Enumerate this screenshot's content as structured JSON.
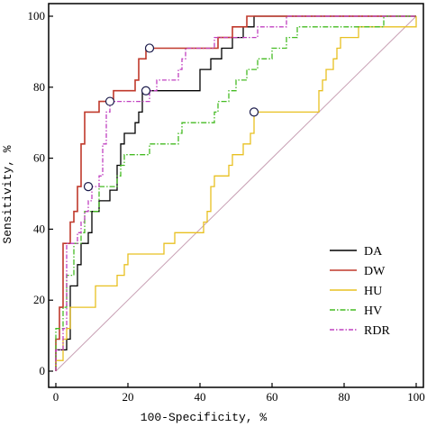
{
  "chart_data": {
    "type": "line",
    "title": "",
    "xlabel": "100-Specificity, %",
    "ylabel": "Sensitivity, %",
    "xlim": [
      0,
      100
    ],
    "ylim": [
      0,
      100
    ],
    "xticks": [
      "0",
      "20",
      "40",
      "60",
      "80",
      "100"
    ],
    "yticks": [
      "0",
      "20",
      "40",
      "60",
      "80",
      "100"
    ],
    "grid": false,
    "legend_position": "bottom-right",
    "reference_line": {
      "from": [
        0,
        0
      ],
      "to": [
        100,
        100
      ],
      "color": "#c8a0b4"
    },
    "series": [
      {
        "name": "DA",
        "color": "#000000",
        "dash": "",
        "points": [
          [
            0,
            0
          ],
          [
            0,
            6
          ],
          [
            3,
            6
          ],
          [
            3,
            9
          ],
          [
            4,
            9
          ],
          [
            4,
            24
          ],
          [
            6,
            24
          ],
          [
            6,
            30
          ],
          [
            7,
            30
          ],
          [
            7,
            36
          ],
          [
            9,
            36
          ],
          [
            9,
            39
          ],
          [
            10,
            39
          ],
          [
            10,
            45
          ],
          [
            12,
            45
          ],
          [
            12,
            48
          ],
          [
            15,
            48
          ],
          [
            15,
            51
          ],
          [
            17,
            51
          ],
          [
            17,
            58
          ],
          [
            18,
            58
          ],
          [
            18,
            64
          ],
          [
            19,
            64
          ],
          [
            19,
            67
          ],
          [
            22,
            67
          ],
          [
            22,
            70
          ],
          [
            23,
            70
          ],
          [
            23,
            73
          ],
          [
            24,
            73
          ],
          [
            24,
            79
          ],
          [
            40,
            79
          ],
          [
            40,
            85
          ],
          [
            43,
            85
          ],
          [
            43,
            88
          ],
          [
            46,
            88
          ],
          [
            46,
            91
          ],
          [
            49,
            91
          ],
          [
            49,
            94
          ],
          [
            52,
            94
          ],
          [
            52,
            97
          ],
          [
            55,
            97
          ],
          [
            55,
            100
          ],
          [
            100,
            100
          ]
        ],
        "marker": [
          25,
          79
        ]
      },
      {
        "name": "DW",
        "color": "#c0392b",
        "dash": "",
        "points": [
          [
            0,
            0
          ],
          [
            0,
            9
          ],
          [
            1,
            9
          ],
          [
            1,
            18
          ],
          [
            2,
            18
          ],
          [
            2,
            36
          ],
          [
            4,
            36
          ],
          [
            4,
            42
          ],
          [
            5,
            42
          ],
          [
            5,
            45
          ],
          [
            6,
            45
          ],
          [
            6,
            52
          ],
          [
            7,
            52
          ],
          [
            7,
            64
          ],
          [
            8,
            64
          ],
          [
            8,
            73
          ],
          [
            12,
            73
          ],
          [
            12,
            76
          ],
          [
            16,
            76
          ],
          [
            16,
            79
          ],
          [
            22,
            79
          ],
          [
            22,
            82
          ],
          [
            23,
            82
          ],
          [
            23,
            88
          ],
          [
            25,
            88
          ],
          [
            25,
            91
          ],
          [
            45,
            91
          ],
          [
            45,
            94
          ],
          [
            49,
            94
          ],
          [
            49,
            97
          ],
          [
            53,
            97
          ],
          [
            53,
            100
          ],
          [
            100,
            100
          ]
        ],
        "marker": [
          26,
          91
        ]
      },
      {
        "name": "HU",
        "color": "#e8c020",
        "dash": "",
        "points": [
          [
            0,
            0
          ],
          [
            0,
            3
          ],
          [
            2,
            3
          ],
          [
            2,
            9
          ],
          [
            3,
            9
          ],
          [
            3,
            12
          ],
          [
            4,
            12
          ],
          [
            4,
            18
          ],
          [
            11,
            18
          ],
          [
            11,
            24
          ],
          [
            17,
            24
          ],
          [
            17,
            27
          ],
          [
            19,
            27
          ],
          [
            19,
            30
          ],
          [
            20,
            30
          ],
          [
            20,
            33
          ],
          [
            30,
            33
          ],
          [
            30,
            36
          ],
          [
            33,
            36
          ],
          [
            33,
            39
          ],
          [
            41,
            39
          ],
          [
            41,
            42
          ],
          [
            42,
            42
          ],
          [
            42,
            45
          ],
          [
            43,
            45
          ],
          [
            43,
            52
          ],
          [
            44,
            52
          ],
          [
            44,
            55
          ],
          [
            48,
            55
          ],
          [
            48,
            58
          ],
          [
            49,
            58
          ],
          [
            49,
            61
          ],
          [
            52,
            61
          ],
          [
            52,
            64
          ],
          [
            54,
            64
          ],
          [
            54,
            67
          ],
          [
            55,
            67
          ],
          [
            55,
            73
          ],
          [
            73,
            73
          ],
          [
            73,
            79
          ],
          [
            74,
            79
          ],
          [
            74,
            82
          ],
          [
            75,
            82
          ],
          [
            75,
            85
          ],
          [
            77,
            85
          ],
          [
            77,
            88
          ],
          [
            78,
            88
          ],
          [
            78,
            91
          ],
          [
            79,
            91
          ],
          [
            79,
            94
          ],
          [
            84,
            94
          ],
          [
            84,
            97
          ],
          [
            100,
            97
          ],
          [
            100,
            100
          ]
        ],
        "marker": [
          55,
          73
        ]
      },
      {
        "name": "HV",
        "color": "#44bb22",
        "dash": "6,2,1.5,2",
        "points": [
          [
            0,
            0
          ],
          [
            0,
            12
          ],
          [
            2,
            12
          ],
          [
            2,
            18
          ],
          [
            3,
            18
          ],
          [
            3,
            27
          ],
          [
            5,
            27
          ],
          [
            5,
            36
          ],
          [
            7,
            36
          ],
          [
            7,
            39
          ],
          [
            8,
            39
          ],
          [
            8,
            45
          ],
          [
            12,
            45
          ],
          [
            12,
            52
          ],
          [
            17,
            52
          ],
          [
            17,
            55
          ],
          [
            18,
            55
          ],
          [
            18,
            58
          ],
          [
            19,
            58
          ],
          [
            19,
            61
          ],
          [
            26,
            61
          ],
          [
            26,
            64
          ],
          [
            34,
            64
          ],
          [
            34,
            67
          ],
          [
            35,
            67
          ],
          [
            35,
            70
          ],
          [
            44,
            70
          ],
          [
            44,
            73
          ],
          [
            45,
            73
          ],
          [
            45,
            76
          ],
          [
            48,
            76
          ],
          [
            48,
            79
          ],
          [
            50,
            79
          ],
          [
            50,
            82
          ],
          [
            53,
            82
          ],
          [
            53,
            85
          ],
          [
            56,
            85
          ],
          [
            56,
            88
          ],
          [
            60,
            88
          ],
          [
            60,
            91
          ],
          [
            64,
            91
          ],
          [
            64,
            94
          ],
          [
            67,
            94
          ],
          [
            67,
            97
          ],
          [
            91,
            97
          ],
          [
            91,
            100
          ],
          [
            100,
            100
          ]
        ],
        "marker": [
          9,
          52
        ]
      },
      {
        "name": "RDR",
        "color": "#c040c0",
        "dash": "5,2,1.5,2",
        "points": [
          [
            0,
            0
          ],
          [
            0,
            6
          ],
          [
            2,
            6
          ],
          [
            2,
            12
          ],
          [
            3,
            12
          ],
          [
            3,
            36
          ],
          [
            6,
            36
          ],
          [
            6,
            39
          ],
          [
            7,
            39
          ],
          [
            7,
            42
          ],
          [
            8,
            42
          ],
          [
            8,
            45
          ],
          [
            9,
            45
          ],
          [
            9,
            48
          ],
          [
            10,
            48
          ],
          [
            10,
            52
          ],
          [
            12,
            52
          ],
          [
            12,
            55
          ],
          [
            13,
            55
          ],
          [
            13,
            64
          ],
          [
            14,
            64
          ],
          [
            14,
            73
          ],
          [
            15,
            73
          ],
          [
            15,
            76
          ],
          [
            26,
            76
          ],
          [
            26,
            79
          ],
          [
            28,
            79
          ],
          [
            28,
            82
          ],
          [
            34,
            82
          ],
          [
            34,
            85
          ],
          [
            35,
            85
          ],
          [
            35,
            88
          ],
          [
            36,
            88
          ],
          [
            36,
            91
          ],
          [
            44,
            91
          ],
          [
            44,
            94
          ],
          [
            56,
            94
          ],
          [
            56,
            97
          ],
          [
            64,
            97
          ],
          [
            64,
            100
          ],
          [
            100,
            100
          ]
        ],
        "marker": [
          15,
          76
        ]
      }
    ]
  }
}
